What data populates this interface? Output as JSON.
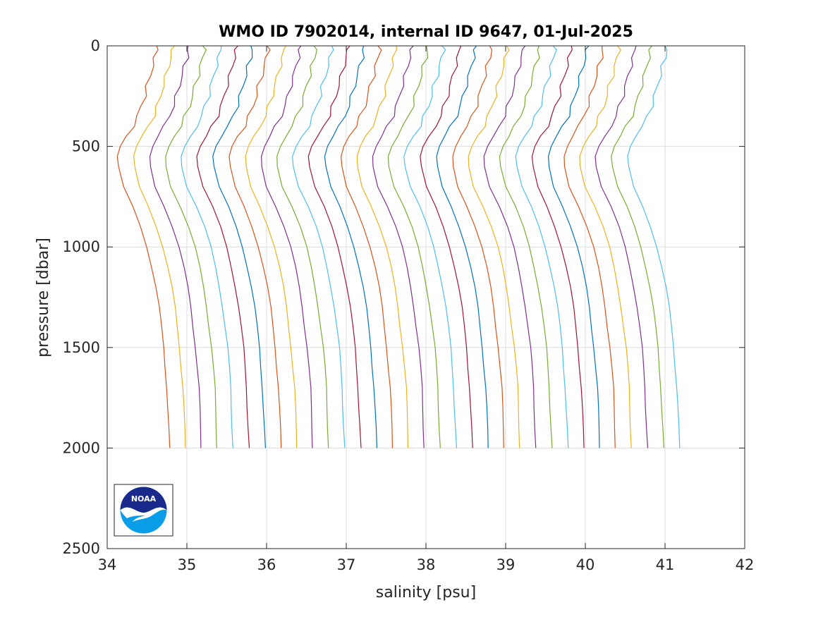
{
  "chart_data": {
    "type": "line",
    "title": "WMO ID 7902014, internal ID 9647, 01-Jul-2025",
    "xlabel": "salinity [psu]",
    "ylabel": "pressure [dbar]",
    "xlim": [
      34,
      42
    ],
    "ylim": [
      0,
      2500
    ],
    "y_reversed": true,
    "grid": true,
    "x_ticks": [
      "34",
      "35",
      "36",
      "37",
      "38",
      "39",
      "40",
      "41",
      "42"
    ],
    "y_ticks": [
      "0",
      "500",
      "1000",
      "1500",
      "2000",
      "2500"
    ],
    "profile_offset_psu": 0.2,
    "pressure_levels": [
      0,
      20,
      60,
      100,
      150,
      200,
      250,
      300,
      350,
      400,
      450,
      500,
      550,
      600,
      700,
      800,
      900,
      1000,
      1100,
      1200,
      1300,
      1400,
      1500,
      1600,
      1700,
      1800,
      1900,
      2000
    ],
    "series": [
      {
        "values": [
          34.62,
          34.62,
          34.6,
          34.57,
          34.54,
          34.5,
          34.47,
          34.43,
          34.38,
          34.32,
          34.24,
          34.17,
          34.13,
          34.14,
          34.2,
          34.32,
          34.42,
          34.5,
          34.56,
          34.61,
          34.65,
          34.68,
          34.71,
          34.73,
          34.75,
          34.76,
          34.77,
          34.78
        ]
      },
      {
        "values": [
          34.82,
          34.82,
          34.8,
          34.77,
          34.74,
          34.7,
          34.67,
          34.63,
          34.58,
          34.52,
          34.44,
          34.37,
          34.33,
          34.34,
          34.4,
          34.52,
          34.62,
          34.7,
          34.76,
          34.81,
          34.85,
          34.88,
          34.91,
          34.93,
          34.95,
          34.96,
          34.97,
          34.98
        ]
      },
      {
        "values": [
          35.02,
          35.02,
          35.0,
          34.97,
          34.94,
          34.9,
          34.87,
          34.83,
          34.78,
          34.72,
          34.64,
          34.57,
          34.53,
          34.54,
          34.6,
          34.72,
          34.82,
          34.9,
          34.96,
          35.01,
          35.05,
          35.08,
          35.11,
          35.13,
          35.15,
          35.16,
          35.17,
          35.18
        ]
      },
      {
        "values": [
          35.22,
          35.22,
          35.2,
          35.17,
          35.14,
          35.1,
          35.07,
          35.03,
          34.98,
          34.92,
          34.84,
          34.77,
          34.73,
          34.74,
          34.8,
          34.92,
          35.02,
          35.1,
          35.16,
          35.21,
          35.25,
          35.28,
          35.31,
          35.33,
          35.35,
          35.36,
          35.37,
          35.38
        ]
      },
      {
        "values": [
          35.42,
          35.42,
          35.4,
          35.37,
          35.34,
          35.3,
          35.27,
          35.23,
          35.18,
          35.12,
          35.04,
          34.97,
          34.93,
          34.94,
          35.0,
          35.12,
          35.22,
          35.3,
          35.36,
          35.41,
          35.45,
          35.48,
          35.51,
          35.53,
          35.55,
          35.56,
          35.57,
          35.58
        ]
      },
      {
        "values": [
          35.62,
          35.62,
          35.6,
          35.57,
          35.54,
          35.5,
          35.47,
          35.43,
          35.38,
          35.32,
          35.24,
          35.17,
          35.13,
          35.14,
          35.2,
          35.32,
          35.42,
          35.5,
          35.56,
          35.61,
          35.65,
          35.68,
          35.71,
          35.73,
          35.75,
          35.76,
          35.77,
          35.78
        ]
      },
      {
        "values": [
          35.82,
          35.82,
          35.8,
          35.77,
          35.74,
          35.7,
          35.67,
          35.63,
          35.58,
          35.52,
          35.44,
          35.37,
          35.33,
          35.34,
          35.4,
          35.52,
          35.62,
          35.7,
          35.76,
          35.81,
          35.85,
          35.88,
          35.91,
          35.93,
          35.95,
          35.96,
          35.97,
          35.98
        ]
      },
      {
        "values": [
          36.02,
          36.02,
          36.0,
          35.97,
          35.94,
          35.9,
          35.87,
          35.83,
          35.78,
          35.72,
          35.64,
          35.57,
          35.53,
          35.54,
          35.6,
          35.72,
          35.82,
          35.9,
          35.96,
          36.01,
          36.05,
          36.08,
          36.11,
          36.13,
          36.15,
          36.16,
          36.17,
          36.18
        ]
      },
      {
        "values": [
          36.22,
          36.22,
          36.2,
          36.17,
          36.14,
          36.1,
          36.07,
          36.03,
          35.98,
          35.92,
          35.84,
          35.77,
          35.73,
          35.74,
          35.8,
          35.92,
          36.02,
          36.1,
          36.16,
          36.21,
          36.25,
          36.28,
          36.31,
          36.33,
          36.35,
          36.36,
          36.37,
          36.38
        ]
      },
      {
        "values": [
          36.42,
          36.42,
          36.4,
          36.37,
          36.34,
          36.3,
          36.27,
          36.23,
          36.18,
          36.12,
          36.04,
          35.97,
          35.93,
          35.94,
          36.0,
          36.12,
          36.22,
          36.3,
          36.36,
          36.41,
          36.45,
          36.48,
          36.51,
          36.53,
          36.55,
          36.56,
          36.57,
          36.58
        ]
      },
      {
        "values": [
          36.62,
          36.62,
          36.6,
          36.57,
          36.54,
          36.5,
          36.47,
          36.43,
          36.38,
          36.32,
          36.24,
          36.17,
          36.13,
          36.14,
          36.2,
          36.32,
          36.42,
          36.5,
          36.56,
          36.61,
          36.65,
          36.68,
          36.71,
          36.73,
          36.75,
          36.76,
          36.77,
          36.78
        ]
      },
      {
        "values": [
          36.82,
          36.82,
          36.8,
          36.77,
          36.74,
          36.7,
          36.67,
          36.63,
          36.58,
          36.52,
          36.44,
          36.37,
          36.33,
          36.34,
          36.4,
          36.52,
          36.62,
          36.7,
          36.76,
          36.81,
          36.85,
          36.88,
          36.91,
          36.93,
          36.95,
          36.96,
          36.97,
          36.98
        ]
      },
      {
        "values": [
          37.02,
          37.02,
          37.0,
          36.97,
          36.94,
          36.9,
          36.87,
          36.83,
          36.78,
          36.72,
          36.64,
          36.57,
          36.53,
          36.54,
          36.6,
          36.72,
          36.82,
          36.9,
          36.96,
          37.01,
          37.05,
          37.08,
          37.11,
          37.13,
          37.15,
          37.16,
          37.17,
          37.18
        ]
      },
      {
        "values": [
          37.22,
          37.22,
          37.2,
          37.17,
          37.14,
          37.1,
          37.07,
          37.03,
          36.98,
          36.92,
          36.84,
          36.77,
          36.73,
          36.74,
          36.8,
          36.92,
          37.02,
          37.1,
          37.16,
          37.21,
          37.25,
          37.28,
          37.31,
          37.33,
          37.35,
          37.36,
          37.37,
          37.38
        ]
      },
      {
        "values": [
          37.42,
          37.42,
          37.4,
          37.37,
          37.34,
          37.3,
          37.27,
          37.23,
          37.18,
          37.12,
          37.04,
          36.97,
          36.93,
          36.94,
          37.0,
          37.12,
          37.22,
          37.3,
          37.36,
          37.41,
          37.45,
          37.48,
          37.51,
          37.53,
          37.55,
          37.56,
          37.57,
          37.58
        ]
      },
      {
        "values": [
          37.62,
          37.62,
          37.6,
          37.57,
          37.54,
          37.5,
          37.47,
          37.43,
          37.38,
          37.32,
          37.24,
          37.17,
          37.13,
          37.14,
          37.2,
          37.32,
          37.42,
          37.5,
          37.56,
          37.61,
          37.65,
          37.68,
          37.71,
          37.73,
          37.75,
          37.76,
          37.77,
          37.78
        ]
      },
      {
        "values": [
          37.82,
          37.82,
          37.8,
          37.77,
          37.74,
          37.7,
          37.67,
          37.63,
          37.58,
          37.52,
          37.44,
          37.37,
          37.33,
          37.34,
          37.4,
          37.52,
          37.62,
          37.7,
          37.76,
          37.81,
          37.85,
          37.88,
          37.91,
          37.93,
          37.95,
          37.96,
          37.97,
          37.98
        ]
      },
      {
        "values": [
          38.02,
          38.02,
          38.0,
          37.97,
          37.94,
          37.9,
          37.87,
          37.83,
          37.78,
          37.72,
          37.64,
          37.57,
          37.53,
          37.54,
          37.6,
          37.72,
          37.82,
          37.9,
          37.96,
          38.01,
          38.05,
          38.08,
          38.11,
          38.13,
          38.15,
          38.16,
          38.17,
          38.18
        ]
      },
      {
        "values": [
          38.22,
          38.22,
          38.2,
          38.17,
          38.14,
          38.1,
          38.07,
          38.03,
          37.98,
          37.92,
          37.84,
          37.77,
          37.73,
          37.74,
          37.8,
          37.92,
          38.02,
          38.1,
          38.16,
          38.21,
          38.25,
          38.28,
          38.31,
          38.33,
          38.35,
          38.36,
          38.37,
          38.38
        ]
      },
      {
        "values": [
          38.42,
          38.42,
          38.4,
          38.37,
          38.34,
          38.3,
          38.27,
          38.23,
          38.18,
          38.12,
          38.04,
          37.97,
          37.93,
          37.94,
          38.0,
          38.12,
          38.22,
          38.3,
          38.36,
          38.41,
          38.45,
          38.48,
          38.51,
          38.53,
          38.55,
          38.56,
          38.57,
          38.58
        ]
      },
      {
        "values": [
          38.62,
          38.62,
          38.6,
          38.57,
          38.54,
          38.5,
          38.47,
          38.43,
          38.38,
          38.32,
          38.24,
          38.17,
          38.13,
          38.14,
          38.2,
          38.32,
          38.42,
          38.5,
          38.56,
          38.61,
          38.65,
          38.68,
          38.71,
          38.73,
          38.75,
          38.76,
          38.77,
          38.78
        ]
      },
      {
        "values": [
          38.82,
          38.82,
          38.8,
          38.77,
          38.74,
          38.7,
          38.67,
          38.63,
          38.58,
          38.52,
          38.44,
          38.37,
          38.33,
          38.34,
          38.4,
          38.52,
          38.62,
          38.7,
          38.76,
          38.81,
          38.85,
          38.88,
          38.91,
          38.93,
          38.95,
          38.96,
          38.97,
          38.98
        ]
      },
      {
        "values": [
          39.02,
          39.02,
          39.0,
          38.97,
          38.94,
          38.9,
          38.87,
          38.83,
          38.78,
          38.72,
          38.64,
          38.57,
          38.53,
          38.54,
          38.6,
          38.72,
          38.82,
          38.9,
          38.96,
          39.01,
          39.05,
          39.08,
          39.11,
          39.13,
          39.15,
          39.16,
          39.17,
          39.18
        ]
      },
      {
        "values": [
          39.22,
          39.22,
          39.2,
          39.17,
          39.14,
          39.1,
          39.07,
          39.03,
          38.98,
          38.92,
          38.84,
          38.77,
          38.73,
          38.74,
          38.8,
          38.92,
          39.02,
          39.1,
          39.16,
          39.21,
          39.25,
          39.28,
          39.31,
          39.33,
          39.35,
          39.36,
          39.37,
          39.38
        ]
      },
      {
        "values": [
          39.42,
          39.42,
          39.4,
          39.37,
          39.34,
          39.3,
          39.27,
          39.23,
          39.18,
          39.12,
          39.04,
          38.97,
          38.93,
          38.94,
          39.0,
          39.12,
          39.22,
          39.3,
          39.36,
          39.41,
          39.45,
          39.48,
          39.51,
          39.53,
          39.55,
          39.56,
          39.57,
          39.58
        ]
      },
      {
        "values": [
          39.62,
          39.62,
          39.6,
          39.57,
          39.54,
          39.5,
          39.47,
          39.43,
          39.38,
          39.32,
          39.24,
          39.17,
          39.13,
          39.14,
          39.2,
          39.32,
          39.42,
          39.5,
          39.56,
          39.61,
          39.65,
          39.68,
          39.71,
          39.73,
          39.75,
          39.76,
          39.77,
          39.78
        ]
      },
      {
        "values": [
          39.82,
          39.82,
          39.8,
          39.77,
          39.74,
          39.7,
          39.67,
          39.63,
          39.58,
          39.52,
          39.44,
          39.37,
          39.33,
          39.34,
          39.4,
          39.52,
          39.62,
          39.7,
          39.76,
          39.81,
          39.85,
          39.88,
          39.91,
          39.93,
          39.95,
          39.96,
          39.97,
          39.98
        ]
      },
      {
        "values": [
          40.02,
          40.02,
          40.0,
          39.97,
          39.94,
          39.9,
          39.87,
          39.83,
          39.78,
          39.72,
          39.64,
          39.57,
          39.53,
          39.54,
          39.6,
          39.72,
          39.82,
          39.9,
          39.96,
          40.01,
          40.05,
          40.08,
          40.11,
          40.13,
          40.15,
          40.16,
          40.17,
          40.18
        ]
      },
      {
        "values": [
          40.22,
          40.22,
          40.2,
          40.17,
          40.14,
          40.1,
          40.07,
          40.03,
          39.98,
          39.92,
          39.84,
          39.77,
          39.73,
          39.74,
          39.8,
          39.92,
          40.02,
          40.1,
          40.16,
          40.21,
          40.25,
          40.28,
          40.31,
          40.33,
          40.35,
          40.36,
          40.37,
          40.38
        ]
      },
      {
        "values": [
          40.42,
          40.42,
          40.4,
          40.37,
          40.34,
          40.3,
          40.27,
          40.23,
          40.18,
          40.12,
          40.04,
          39.97,
          39.93,
          39.94,
          40.0,
          40.12,
          40.22,
          40.3,
          40.36,
          40.41,
          40.45,
          40.48,
          40.51,
          40.53,
          40.55,
          40.56,
          40.57,
          40.58
        ]
      },
      {
        "values": [
          40.62,
          40.62,
          40.6,
          40.57,
          40.54,
          40.5,
          40.47,
          40.43,
          40.38,
          40.32,
          40.24,
          40.17,
          40.13,
          40.14,
          40.2,
          40.32,
          40.42,
          40.5,
          40.56,
          40.61,
          40.65,
          40.68,
          40.71,
          40.73,
          40.75,
          40.76,
          40.77,
          40.78
        ]
      },
      {
        "values": [
          40.82,
          40.82,
          40.8,
          40.77,
          40.74,
          40.7,
          40.67,
          40.63,
          40.58,
          40.52,
          40.44,
          40.37,
          40.33,
          40.34,
          40.4,
          40.52,
          40.62,
          40.7,
          40.76,
          40.81,
          40.85,
          40.88,
          40.91,
          40.93,
          40.95,
          40.96,
          40.97,
          40.98
        ]
      },
      {
        "values": [
          41.02,
          41.02,
          41.0,
          40.97,
          40.94,
          40.9,
          40.87,
          40.83,
          40.78,
          40.72,
          40.64,
          40.57,
          40.53,
          40.54,
          40.6,
          40.72,
          40.82,
          40.9,
          40.96,
          41.01,
          41.05,
          41.08,
          41.11,
          41.13,
          41.15,
          41.16,
          41.17,
          41.18
        ]
      }
    ],
    "palette": [
      "#d95319",
      "#edb120",
      "#7e2f8e",
      "#77ac30",
      "#4dbeee",
      "#a2142f",
      "#0072bd"
    ],
    "logo": {
      "name": "noaa-logo",
      "text": "NOAA",
      "colors": {
        "top": "#1a2a8c",
        "bottom": "#0a9ee8",
        "wave": "#ffffff"
      }
    }
  }
}
